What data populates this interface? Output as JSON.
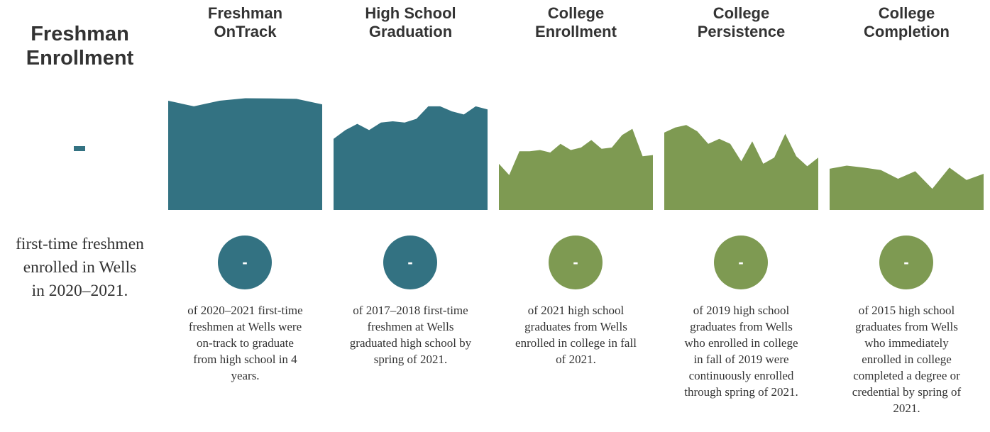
{
  "colors": {
    "teal": "#337282",
    "green": "#7e9a52",
    "text": "#333333"
  },
  "main": {
    "title_lines": [
      "Freshman",
      "Enrollment"
    ],
    "value": "",
    "value_icon": "dash-bar",
    "desc_lines": [
      "first-time freshmen",
      "enrolled in Wells",
      "in 2020–2021."
    ]
  },
  "columns": [
    {
      "title_lines": [
        "Freshman",
        "OnTrack"
      ],
      "value": "-",
      "color": "#337282",
      "desc_lines": [
        "of 2020–2021 first-time",
        "freshmen at Wells were",
        "on-track to graduate",
        "from high school in 4",
        "years."
      ]
    },
    {
      "title_lines": [
        "High School",
        "Graduation"
      ],
      "value": "-",
      "color": "#337282",
      "desc_lines": [
        "of 2017–2018 first-time",
        "freshmen at Wells",
        "graduated high school by",
        "spring of 2021."
      ]
    },
    {
      "title_lines": [
        "College",
        "Enrollment"
      ],
      "value": "-",
      "color": "#7e9a52",
      "desc_lines": [
        "of 2021 high school",
        "graduates from Wells",
        "enrolled in college in fall",
        "of 2021."
      ]
    },
    {
      "title_lines": [
        "College",
        "Persistence"
      ],
      "value": "-",
      "color": "#7e9a52",
      "desc_lines": [
        "of 2019 high school",
        "graduates from Wells",
        "who enrolled in college",
        "in fall of 2019 were",
        "continuously enrolled",
        "through spring of 2021."
      ]
    },
    {
      "title_lines": [
        "College",
        "Completion"
      ],
      "value": "-",
      "color": "#7e9a52",
      "desc_lines": [
        "of 2015 high school",
        "graduates from Wells",
        "who immediately",
        "enrolled in college",
        "completed a degree or",
        "credential by spring of",
        "2021."
      ]
    }
  ],
  "chart_data": [
    {
      "type": "area",
      "color": "#337282",
      "ylim": [
        0,
        1
      ],
      "values": [
        0.875,
        0.83,
        0.875,
        0.895,
        0.893,
        0.89,
        0.846
      ],
      "axes_shown": false
    },
    {
      "type": "area",
      "color": "#337282",
      "ylim": [
        0,
        1
      ],
      "values": [
        0.57,
        0.64,
        0.69,
        0.64,
        0.7,
        0.71,
        0.7,
        0.73,
        0.83,
        0.83,
        0.79,
        0.765,
        0.83,
        0.805
      ],
      "axes_shown": false
    },
    {
      "type": "area",
      "color": "#7e9a52",
      "ylim": [
        0,
        1
      ],
      "values": [
        0.37,
        0.28,
        0.47,
        0.47,
        0.48,
        0.46,
        0.53,
        0.48,
        0.5,
        0.56,
        0.49,
        0.5,
        0.6,
        0.65,
        0.43,
        0.44
      ],
      "axes_shown": false
    },
    {
      "type": "area",
      "color": "#7e9a52",
      "ylim": [
        0,
        1
      ],
      "values": [
        0.62,
        0.66,
        0.68,
        0.63,
        0.53,
        0.57,
        0.53,
        0.39,
        0.55,
        0.37,
        0.42,
        0.61,
        0.43,
        0.35,
        0.42
      ],
      "axes_shown": false
    },
    {
      "type": "area",
      "color": "#7e9a52",
      "ylim": [
        0,
        1
      ],
      "values": [
        0.33,
        0.355,
        0.34,
        0.32,
        0.25,
        0.31,
        0.17,
        0.34,
        0.24,
        0.29
      ],
      "axes_shown": false
    }
  ]
}
